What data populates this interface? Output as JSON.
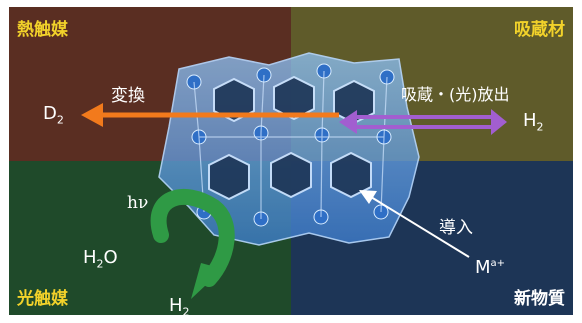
{
  "corners": {
    "top_left": "熱触媒",
    "top_right": "吸蔵材",
    "bottom_left": "光触媒",
    "bottom_right": "新物質"
  },
  "labels": {
    "conversion": "変換",
    "d2_base": "D",
    "d2_sub": "2",
    "absorb_release": "吸蔵・(光)放出",
    "h2_right_base": "H",
    "h2_right_sub": "2",
    "photon": "hν",
    "water_a": "H",
    "water_sub": "2",
    "water_b": "O",
    "h2_bottom_base": "H",
    "h2_bottom_sub": "2",
    "introduce": "導入",
    "ion_base": "M",
    "ion_sup": "a+"
  },
  "colors": {
    "top_left_bg": "#5a2e22",
    "top_right_bg": "#5f5b2a",
    "bottom_left_bg": "#1f4a2a",
    "bottom_right_bg": "#1d3556",
    "corner_yellow": "#f2d22a",
    "orange_arrow": "#f27a1c",
    "purple_arrow": "#a25ed0",
    "green_arrow": "#2f9a45",
    "crystal": "#6aa8e8"
  }
}
